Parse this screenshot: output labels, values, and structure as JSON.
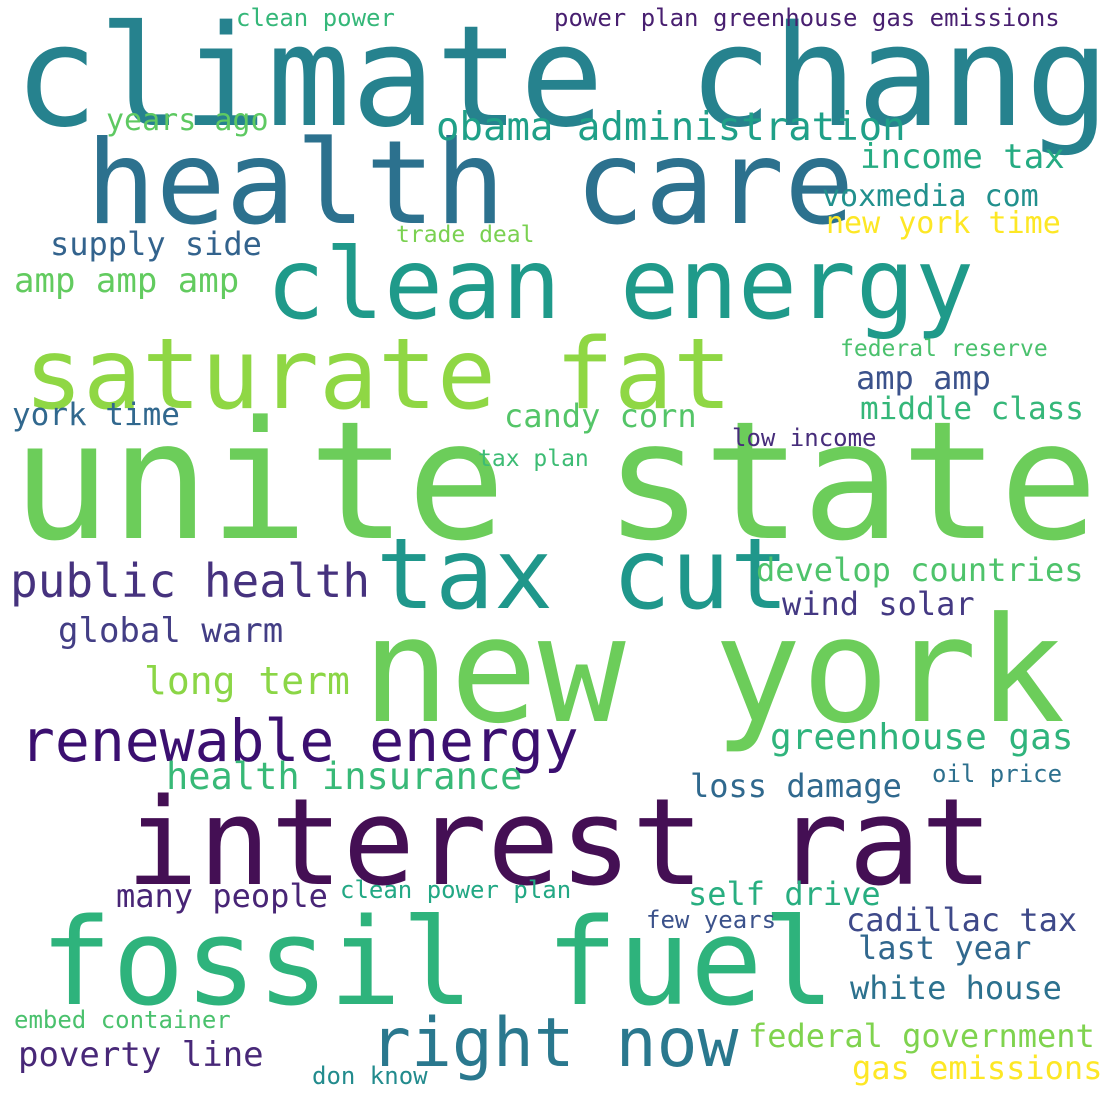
{
  "words": [
    {
      "text": "climate change",
      "color": "#26828e"
    },
    {
      "text": "health care",
      "color": "#2c718e"
    },
    {
      "text": "clean energy",
      "color": "#1f9a8a"
    },
    {
      "text": "saturate fat",
      "color": "#8fd744"
    },
    {
      "text": "unite state",
      "color": "#6ccd5a"
    },
    {
      "text": "tax cut",
      "color": "#1f978b"
    },
    {
      "text": "new york",
      "color": "#6ccd5a"
    },
    {
      "text": "interest rat",
      "color": "#440f54"
    },
    {
      "text": "fossil fuel",
      "color": "#2eb37c"
    },
    {
      "text": "right now",
      "color": "#2a788e"
    },
    {
      "text": "renewable energy",
      "color": "#3b0f70"
    },
    {
      "text": "public health",
      "color": "#46327e"
    },
    {
      "text": "obama administration",
      "color": "#1fa088"
    },
    {
      "text": "income tax",
      "color": "#25ab82"
    },
    {
      "text": "voxmedia com",
      "color": "#21908d"
    },
    {
      "text": "new york time",
      "color": "#fde725"
    },
    {
      "text": "supply side",
      "color": "#33638d"
    },
    {
      "text": "amp amp amp",
      "color": "#62cb5f"
    },
    {
      "text": "years ago",
      "color": "#5ec962"
    },
    {
      "text": "trade deal",
      "color": "#7ad151"
    },
    {
      "text": "clean power",
      "color": "#35b779"
    },
    {
      "text": "power plan greenhouse gas emissions",
      "color": "#481f70"
    },
    {
      "text": "federal reserve",
      "color": "#4ac16d"
    },
    {
      "text": "amp amp",
      "color": "#3b528b"
    },
    {
      "text": "middle class",
      "color": "#35b779"
    },
    {
      "text": "candy corn",
      "color": "#54c568"
    },
    {
      "text": "york time",
      "color": "#31688e"
    },
    {
      "text": "low income",
      "color": "#472d7b"
    },
    {
      "text": "tax plan",
      "color": "#3dbc74"
    },
    {
      "text": "develop countries",
      "color": "#4ec36b"
    },
    {
      "text": "wind solar",
      "color": "#443983"
    },
    {
      "text": "global warm",
      "color": "#433e85"
    },
    {
      "text": "long term",
      "color": "#8bd646"
    },
    {
      "text": "greenhouse gas",
      "color": "#2fb47c"
    },
    {
      "text": "health insurance",
      "color": "#38b977"
    },
    {
      "text": "loss damage",
      "color": "#30698e"
    },
    {
      "text": "oil price",
      "color": "#2d708e"
    },
    {
      "text": "many people",
      "color": "#482576"
    },
    {
      "text": "clean power plan",
      "color": "#22a884"
    },
    {
      "text": "self drive",
      "color": "#28ae80"
    },
    {
      "text": "cadillac tax",
      "color": "#3e4989"
    },
    {
      "text": "few years",
      "color": "#3b528b"
    },
    {
      "text": "last year",
      "color": "#31688e"
    },
    {
      "text": "white house",
      "color": "#2c718e"
    },
    {
      "text": "embed container",
      "color": "#4ac16d"
    },
    {
      "text": "federal government",
      "color": "#7fd34e"
    },
    {
      "text": "poverty line",
      "color": "#482878"
    },
    {
      "text": "gas emissions",
      "color": "#fde725"
    },
    {
      "text": "don know",
      "color": "#228b8d"
    }
  ]
}
